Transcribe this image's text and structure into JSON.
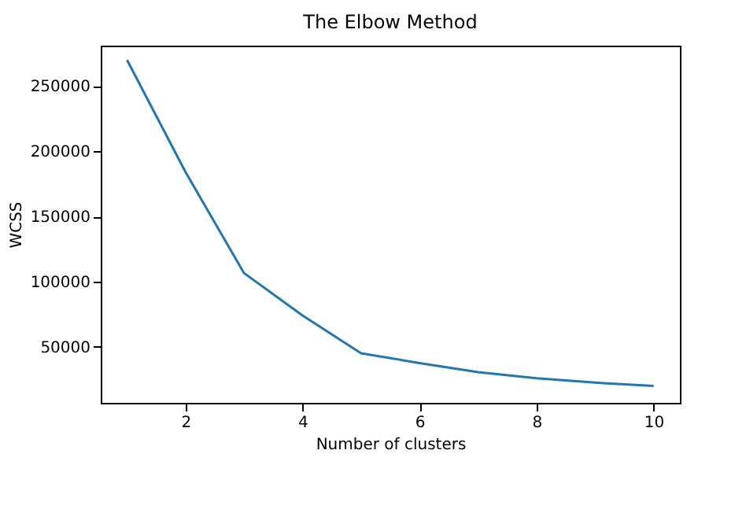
{
  "chart_data": {
    "type": "line",
    "title": "The Elbow Method",
    "xlabel": "Number of clusters",
    "ylabel": "WCSS",
    "x": [
      1,
      2,
      3,
      4,
      5,
      6,
      7,
      8,
      9,
      10
    ],
    "series": [
      {
        "color": "#1f77b4",
        "values": [
          270000,
          184000,
          106500,
          74000,
          45000,
          37500,
          30500,
          25800,
          22500,
          20000
        ]
      }
    ],
    "xlim": [
      0.55,
      10.45
    ],
    "xticks": [
      2,
      4,
      6,
      8,
      10
    ],
    "ylim": [
      7000,
      281000
    ],
    "yticks": [
      50000,
      100000,
      150000,
      200000,
      250000
    ],
    "grid": false,
    "legend": false
  }
}
